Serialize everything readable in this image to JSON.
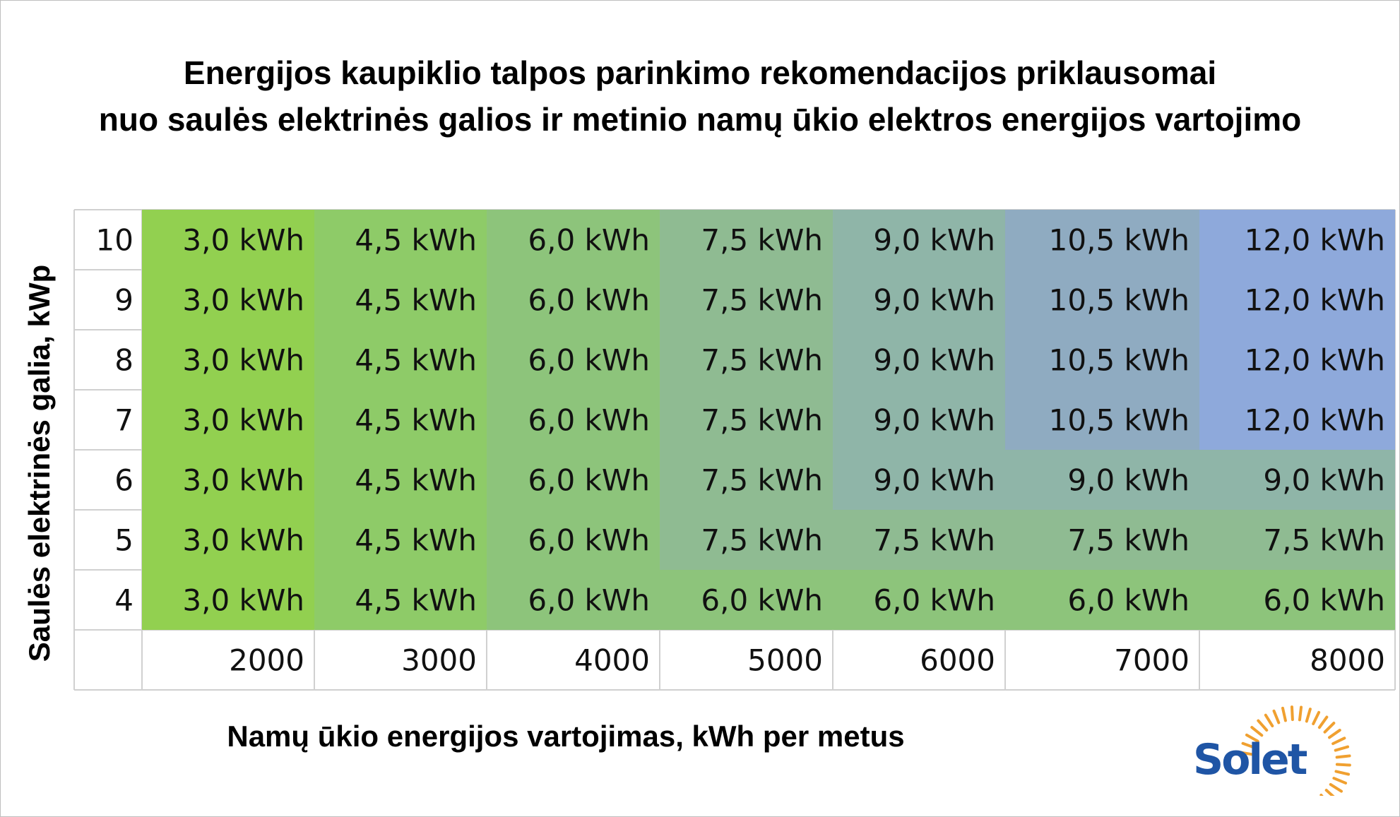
{
  "chart_data": {
    "type": "table",
    "title_lines": [
      "Energijos kaupiklio talpos parinkimo rekomendacijos priklausomai",
      "nuo saulės elektrinės galios ir metinio namų ūkio elektros energijos vartojimo"
    ],
    "xlabel": "Namų ūkio energijos vartojimas, kWh per metus",
    "ylabel": "Saulės elektrinės galia, kWp",
    "columns": [
      "2000",
      "3000",
      "4000",
      "5000",
      "6000",
      "7000",
      "8000"
    ],
    "rows": [
      "10",
      "9",
      "8",
      "7",
      "6",
      "5",
      "4"
    ],
    "values": [
      [
        "3,0 kWh",
        "4,5 kWh",
        "6,0 kWh",
        "7,5 kWh",
        "9,0 kWh",
        "10,5 kWh",
        "12,0 kWh"
      ],
      [
        "3,0 kWh",
        "4,5 kWh",
        "6,0 kWh",
        "7,5 kWh",
        "9,0 kWh",
        "10,5 kWh",
        "12,0 kWh"
      ],
      [
        "3,0 kWh",
        "4,5 kWh",
        "6,0 kWh",
        "7,5 kWh",
        "9,0 kWh",
        "10,5 kWh",
        "12,0 kWh"
      ],
      [
        "3,0 kWh",
        "4,5 kWh",
        "6,0 kWh",
        "7,5 kWh",
        "9,0 kWh",
        "10,5 kWh",
        "12,0 kWh"
      ],
      [
        "3,0 kWh",
        "4,5 kWh",
        "6,0 kWh",
        "7,5 kWh",
        "9,0 kWh",
        "9,0 kWh",
        "9,0 kWh"
      ],
      [
        "3,0 kWh",
        "4,5 kWh",
        "6,0 kWh",
        "7,5 kWh",
        "7,5 kWh",
        "7,5 kWh",
        "7,5 kWh"
      ],
      [
        "3,0 kWh",
        "4,5 kWh",
        "6,0 kWh",
        "6,0 kWh",
        "6,0 kWh",
        "6,0 kWh",
        "6,0 kWh"
      ]
    ],
    "value_colors": {
      "3,0 kWh": "#92d050",
      "4,5 kWh": "#8ecb68",
      "6,0 kWh": "#8dc47b",
      "7,5 kWh": "#8fbb92",
      "9,0 kWh": "#8fb5a8",
      "10,5 kWh": "#8fabc1",
      "12,0 kWh": "#8ea9db"
    }
  },
  "logo": {
    "text": "Solet",
    "text_color": "#1f55a5",
    "ray_color": "#f0a030"
  }
}
